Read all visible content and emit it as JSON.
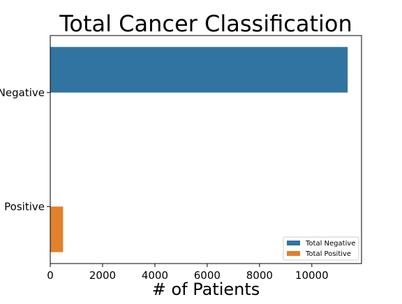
{
  "chart_data": {
    "type": "bar",
    "orientation": "horizontal",
    "title": "Total Cancer Classification",
    "xlabel": "# of Patients",
    "ylabel": "",
    "categories": [
      "Negative",
      "Positive"
    ],
    "series": [
      {
        "name": "Total Negative",
        "color": "#3274a1",
        "values": [
          11370,
          0
        ]
      },
      {
        "name": "Total Positive",
        "color": "#e1812c",
        "values": [
          0,
          490
        ]
      }
    ],
    "xlim": [
      0,
      11900
    ],
    "xticks": [
      0,
      2000,
      4000,
      6000,
      8000,
      10000
    ],
    "grid": false,
    "legend_position": "lower-right"
  }
}
